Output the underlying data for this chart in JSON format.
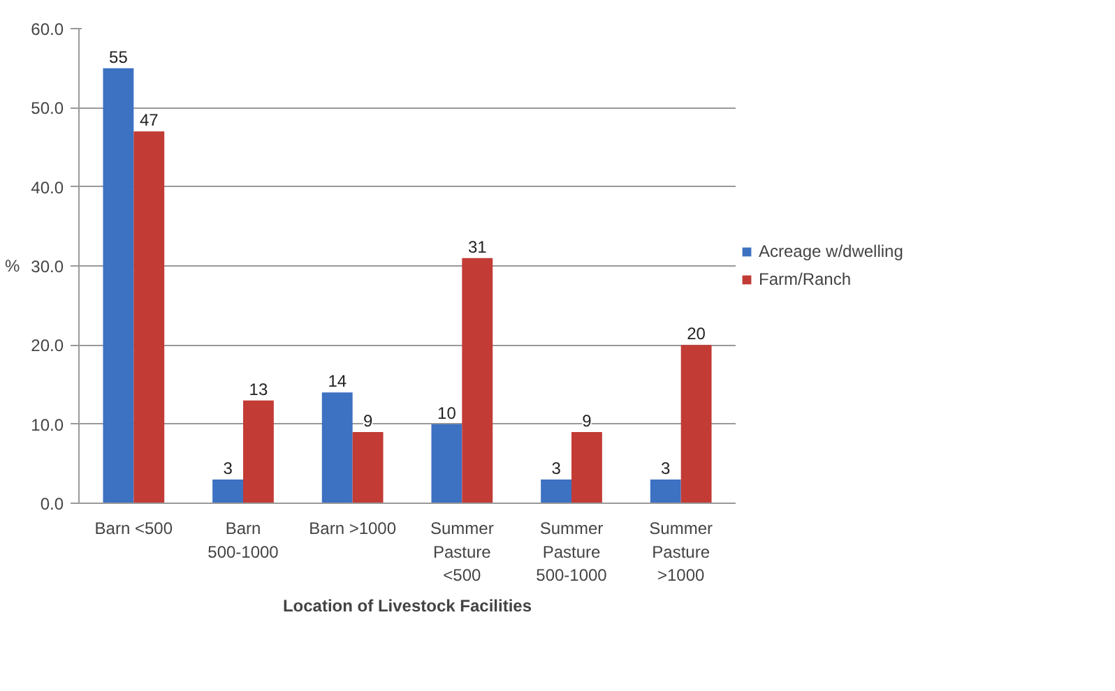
{
  "chart_data": {
    "type": "bar",
    "xlabel": "Location of Livestock Facilities",
    "ylabel": "%",
    "categories": [
      "Barn <500",
      "Barn 500-1000",
      "Barn >1000",
      "Summer Pasture <500",
      "Summer Pasture 500-1000",
      "Summer Pasture >1000"
    ],
    "series": [
      {
        "name": "Acreage w/dwelling",
        "color": "#3d71c2",
        "values": [
          55,
          3,
          14,
          10,
          3,
          3
        ]
      },
      {
        "name": "Farm/Ranch",
        "color": "#c23b35",
        "values": [
          47,
          13,
          9,
          31,
          9,
          20
        ]
      }
    ],
    "ylim": [
      0,
      60
    ],
    "yticks": [
      {
        "value": 0,
        "label": "0.0"
      },
      {
        "value": 10,
        "label": "10.0"
      },
      {
        "value": 20,
        "label": "20.0"
      },
      {
        "value": 30,
        "label": "30.0"
      },
      {
        "value": 40,
        "label": "40.0"
      },
      {
        "value": 50,
        "label": "50.0"
      },
      {
        "value": 60,
        "label": "60.0"
      }
    ],
    "grid": "y",
    "legend": "right",
    "data_labels": true
  }
}
